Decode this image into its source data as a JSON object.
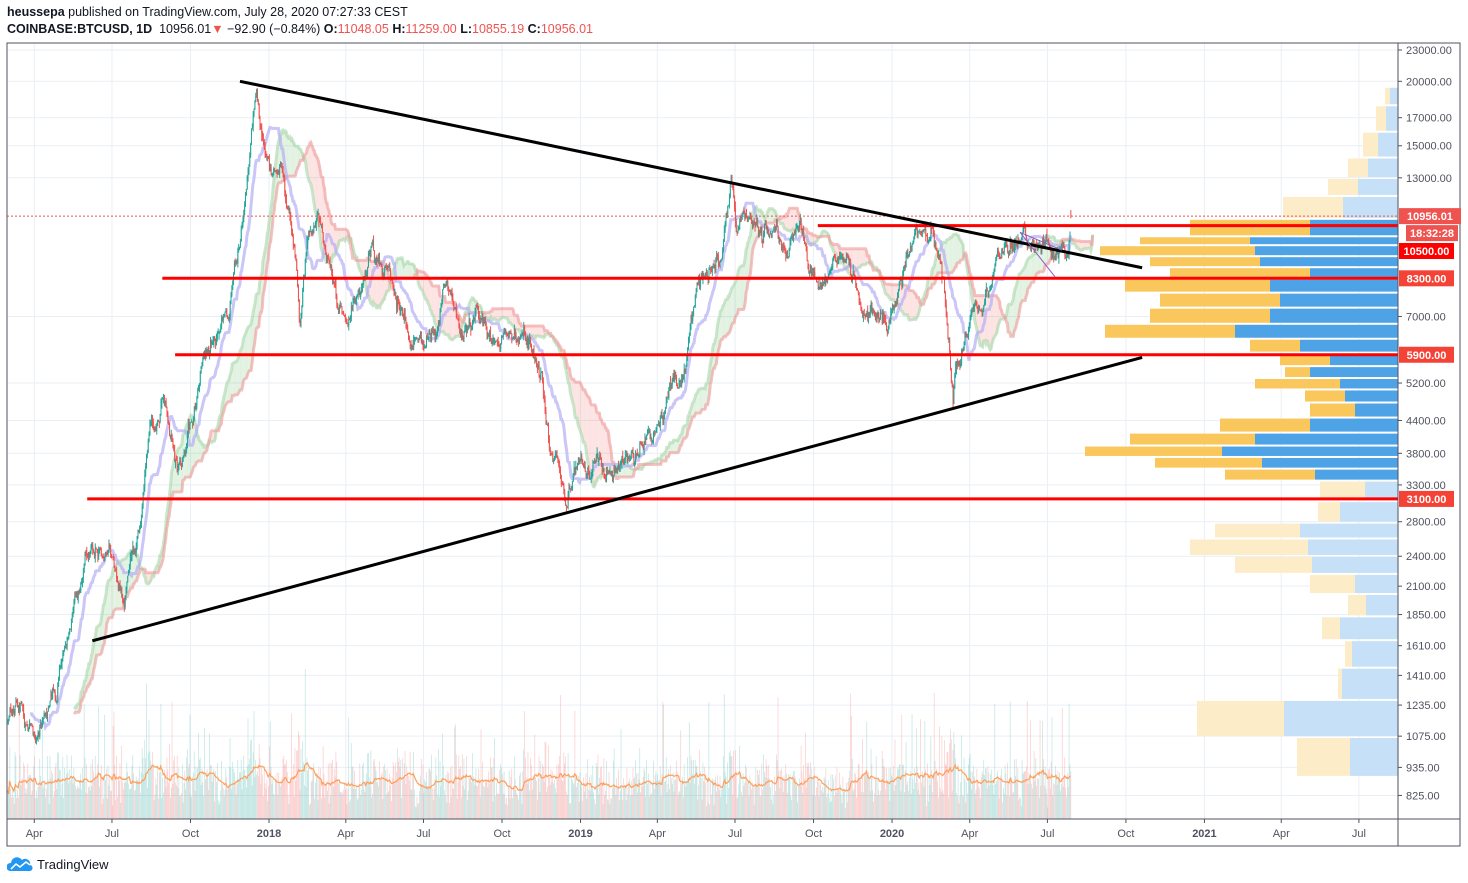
{
  "header": {
    "author": "heussepa",
    "published_text": "published on TradingView.com, July 28, 2020 07:27:33 CEST",
    "symbol": "COINBASE:BTCUSD, 1D",
    "last": "10956.01",
    "change": "−92.90 (−0.84%)",
    "o_label": "O:",
    "o": "11048.05",
    "h_label": "H:",
    "h": "11259.00",
    "l_label": "L:",
    "l": "10855.19",
    "c_label": "C:",
    "c": "10956.01",
    "direction_icon": "down-triangle-icon"
  },
  "footer": {
    "brand": "TradingView",
    "logo_icon": "tradingview-cloud-icon"
  },
  "chart_data": {
    "type": "candlestick",
    "scale": "log",
    "interval": "1D",
    "ylim": [
      790,
      23500
    ],
    "grid": true,
    "colors": {
      "up": "#26a69a",
      "down": "#ef5350",
      "level": "#ff0000",
      "trend": "#000000",
      "kijun": "#b3aef5",
      "span_a": "#a5d6a7",
      "span_b": "#ef9a9a",
      "volume_ma": "#ff9f5a",
      "vp_up": "#f9c75c",
      "vp_down": "#4ea3e6",
      "vp_up_faded": "#fdecc8",
      "vp_down_faded": "#c5e0f7"
    },
    "y_ticks": [
      "23000.00",
      "20000.00",
      "17000.00",
      "15000.00",
      "13000.00",
      "7000.00",
      "5200.00",
      "4400.00",
      "3800.00",
      "3300.00",
      "2800.00",
      "2400.00",
      "2100.00",
      "1850.00",
      "1610.00",
      "1410.00",
      "1235.00",
      "1075.00",
      "935.00",
      "825.00"
    ],
    "x_ticks": [
      {
        "label": "Apr",
        "date": "2017-04-01",
        "bold": false
      },
      {
        "label": "Jul",
        "date": "2017-07-01",
        "bold": false
      },
      {
        "label": "Oct",
        "date": "2017-10-01",
        "bold": false
      },
      {
        "label": "2018",
        "date": "2018-01-01",
        "bold": true
      },
      {
        "label": "Apr",
        "date": "2018-04-01",
        "bold": false
      },
      {
        "label": "Jul",
        "date": "2018-07-01",
        "bold": false
      },
      {
        "label": "Oct",
        "date": "2018-10-01",
        "bold": false
      },
      {
        "label": "2019",
        "date": "2019-01-01",
        "bold": true
      },
      {
        "label": "Apr",
        "date": "2019-04-01",
        "bold": false
      },
      {
        "label": "Jul",
        "date": "2019-07-01",
        "bold": false
      },
      {
        "label": "Oct",
        "date": "2019-10-01",
        "bold": false
      },
      {
        "label": "2020",
        "date": "2020-01-01",
        "bold": true
      },
      {
        "label": "Apr",
        "date": "2020-04-01",
        "bold": false
      },
      {
        "label": "Jul",
        "date": "2020-07-01",
        "bold": false
      },
      {
        "label": "Oct",
        "date": "2020-10-01",
        "bold": false
      },
      {
        "label": "2021",
        "date": "2021-01-01",
        "bold": true
      },
      {
        "label": "Apr",
        "date": "2021-04-01",
        "bold": false
      },
      {
        "label": "Jul",
        "date": "2021-07-01",
        "bold": false
      }
    ],
    "price_path": [
      [
        "2017-03-01",
        1200
      ],
      [
        "2017-03-15",
        1250
      ],
      [
        "2017-04-01",
        1080
      ],
      [
        "2017-04-15",
        1180
      ],
      [
        "2017-05-01",
        1420
      ],
      [
        "2017-05-15",
        1750
      ],
      [
        "2017-06-01",
        2400
      ],
      [
        "2017-06-15",
        2450
      ],
      [
        "2017-07-01",
        2500
      ],
      [
        "2017-07-15",
        1950
      ],
      [
        "2017-08-01",
        2700
      ],
      [
        "2017-08-15",
        4200
      ],
      [
        "2017-09-01",
        4700
      ],
      [
        "2017-09-15",
        3700
      ],
      [
        "2017-10-01",
        4350
      ],
      [
        "2017-10-15",
        5700
      ],
      [
        "2017-11-01",
        6700
      ],
      [
        "2017-11-15",
        7300
      ],
      [
        "2017-12-01",
        10900
      ],
      [
        "2017-12-17",
        19500
      ],
      [
        "2018-01-01",
        13400
      ],
      [
        "2018-01-15",
        13600
      ],
      [
        "2018-02-01",
        9100
      ],
      [
        "2018-02-06",
        6900
      ],
      [
        "2018-02-15",
        10000
      ],
      [
        "2018-03-01",
        10900
      ],
      [
        "2018-03-15",
        8300
      ],
      [
        "2018-04-01",
        6900
      ],
      [
        "2018-04-15",
        8000
      ],
      [
        "2018-05-01",
        9200
      ],
      [
        "2018-05-15",
        8500
      ],
      [
        "2018-06-01",
        7500
      ],
      [
        "2018-06-15",
        6500
      ],
      [
        "2018-07-01",
        6350
      ],
      [
        "2018-07-15",
        6300
      ],
      [
        "2018-07-25",
        8200
      ],
      [
        "2018-08-01",
        7600
      ],
      [
        "2018-08-15",
        6300
      ],
      [
        "2018-09-01",
        7000
      ],
      [
        "2018-09-15",
        6500
      ],
      [
        "2018-10-01",
        6600
      ],
      [
        "2018-10-15",
        6400
      ],
      [
        "2018-11-01",
        6350
      ],
      [
        "2018-11-15",
        5600
      ],
      [
        "2018-11-25",
        3800
      ],
      [
        "2018-12-15",
        3200
      ],
      [
        "2019-01-01",
        3800
      ],
      [
        "2019-01-15",
        3600
      ],
      [
        "2019-02-01",
        3450
      ],
      [
        "2019-02-15",
        3600
      ],
      [
        "2019-03-01",
        3800
      ],
      [
        "2019-03-15",
        4000
      ],
      [
        "2019-04-01",
        4100
      ],
      [
        "2019-04-15",
        5100
      ],
      [
        "2019-05-01",
        5300
      ],
      [
        "2019-05-15",
        8000
      ],
      [
        "2019-06-01",
        8600
      ],
      [
        "2019-06-15",
        8800
      ],
      [
        "2019-06-26",
        12900
      ],
      [
        "2019-07-01",
        10600
      ],
      [
        "2019-07-15",
        10800
      ],
      [
        "2019-08-01",
        10100
      ],
      [
        "2019-08-15",
        10300
      ],
      [
        "2019-09-01",
        9700
      ],
      [
        "2019-09-15",
        10300
      ],
      [
        "2019-09-25",
        8400
      ],
      [
        "2019-10-15",
        8300
      ],
      [
        "2019-10-26",
        9300
      ],
      [
        "2019-11-15",
        8500
      ],
      [
        "2019-11-25",
        7100
      ],
      [
        "2019-12-15",
        7100
      ],
      [
        "2020-01-01",
        7200
      ],
      [
        "2020-01-15",
        8800
      ],
      [
        "2020-02-01",
        9400
      ],
      [
        "2020-02-15",
        10300
      ],
      [
        "2020-03-01",
        8600
      ],
      [
        "2020-03-12",
        4900
      ],
      [
        "2020-03-15",
        5400
      ],
      [
        "2020-04-01",
        6600
      ],
      [
        "2020-04-15",
        6900
      ],
      [
        "2020-04-30",
        8800
      ],
      [
        "2020-05-15",
        9300
      ],
      [
        "2020-06-01",
        9500
      ],
      [
        "2020-06-15",
        9400
      ],
      [
        "2020-07-01",
        9200
      ],
      [
        "2020-07-15",
        9200
      ],
      [
        "2020-07-25",
        9700
      ],
      [
        "2020-07-28",
        10956.01
      ]
    ],
    "last_candle": {
      "date": "2020-07-28",
      "open": 11048.05,
      "high": 11259.0,
      "low": 10855.19,
      "close": 10956.01
    },
    "horizontal_levels": [
      {
        "price": 10500,
        "label": "10500.00",
        "start": "2019-10-06",
        "badge_color": "#ff0000"
      },
      {
        "price": 8300,
        "label": "8300.00",
        "start": "2017-08-29",
        "badge_color": "#f44336"
      },
      {
        "price": 5900,
        "label": "5900.00",
        "start": "2017-09-13",
        "badge_color": "#f44336"
      },
      {
        "price": 3100,
        "label": "3100.00",
        "start": "2017-06-02",
        "badge_color": "#f44336"
      }
    ],
    "current_price": {
      "label": "10956.01",
      "price": 10956.01,
      "countdown": "18:32:28",
      "color": "#ef5350"
    },
    "trend_lines": [
      {
        "name": "upper",
        "from": [
          "2017-11-28",
          20000
        ],
        "to": [
          "2020-10-20",
          8700
        ],
        "color": "#000000"
      },
      {
        "name": "lower",
        "from": [
          "2017-06-08",
          1645
        ],
        "to": [
          "2020-10-20",
          5830
        ],
        "color": "#000000"
      },
      {
        "name": "pennant-a",
        "from": [
          "2020-05-30",
          10190
        ],
        "to": [
          "2020-07-10",
          8350
        ],
        "color": "#8e5cc4"
      },
      {
        "name": "pennant-b",
        "from": [
          "2020-05-30",
          10190
        ],
        "to": [
          "2020-07-18",
          9410
        ],
        "color": "#8e5cc4"
      }
    ],
    "volume_profile": [
      {
        "price": 19000,
        "up": 5,
        "down": 8,
        "active": false
      },
      {
        "price": 17000,
        "up": 10,
        "down": 12,
        "active": false
      },
      {
        "price": 15000,
        "up": 15,
        "down": 20,
        "active": false
      },
      {
        "price": 13500,
        "up": 20,
        "down": 30,
        "active": false
      },
      {
        "price": 12500,
        "up": 30,
        "down": 40,
        "active": false
      },
      {
        "price": 11500,
        "up": 60,
        "down": 55,
        "active": false
      },
      {
        "price": 10190,
        "up": 120,
        "down": 88,
        "active": true
      },
      {
        "price": 9840,
        "up": 110,
        "down": 148,
        "active": true
      },
      {
        "price": 9410,
        "up": 155,
        "down": 143,
        "active": true
      },
      {
        "price": 8920,
        "up": 110,
        "down": 138,
        "active": true
      },
      {
        "price": 8530,
        "up": 140,
        "down": 88,
        "active": true
      },
      {
        "price": 8050,
        "up": 145,
        "down": 128,
        "active": true
      },
      {
        "price": 7530,
        "up": 120,
        "down": 118,
        "active": true
      },
      {
        "price": 7040,
        "up": 120,
        "down": 128,
        "active": true
      },
      {
        "price": 6520,
        "up": 130,
        "down": 163,
        "active": true
      },
      {
        "price": 6160,
        "up": 50,
        "down": 98,
        "active": true
      },
      {
        "price": 5760,
        "up": 50,
        "down": 68,
        "active": true
      },
      {
        "price": 5460,
        "up": 25,
        "down": 88,
        "active": true
      },
      {
        "price": 5180,
        "up": 85,
        "down": 58,
        "active": true
      },
      {
        "price": 4930,
        "up": 40,
        "down": 53,
        "active": true
      },
      {
        "price": 4610,
        "up": 45,
        "down": 43,
        "active": true
      },
      {
        "price": 4310,
        "up": 90,
        "down": 88,
        "active": true
      },
      {
        "price": 4030,
        "up": 125,
        "down": 143,
        "active": true
      },
      {
        "price": 3840,
        "up": 137,
        "down": 176,
        "active": true
      },
      {
        "price": 3640,
        "up": 107,
        "down": 136,
        "active": true
      },
      {
        "price": 3460,
        "up": 90,
        "down": 83,
        "active": true
      },
      {
        "price": 3270,
        "up": 45,
        "down": 33,
        "active": false
      },
      {
        "price": 2880,
        "up": 22,
        "down": 58,
        "active": false
      },
      {
        "price": 2700,
        "up": 85,
        "down": 98,
        "active": false
      },
      {
        "price": 2500,
        "up": 118,
        "down": 90,
        "active": false
      },
      {
        "price": 2310,
        "up": 77,
        "down": 86,
        "active": false
      },
      {
        "price": 2130,
        "up": 45,
        "down": 43,
        "active": false
      },
      {
        "price": 1930,
        "up": 18,
        "down": 32,
        "active": false
      },
      {
        "price": 1745,
        "up": 18,
        "down": 58,
        "active": false
      },
      {
        "price": 1560,
        "up": 7,
        "down": 46,
        "active": false
      },
      {
        "price": 1365,
        "up": 4,
        "down": 56,
        "active": false
      },
      {
        "price": 1170,
        "up": 87,
        "down": 114,
        "active": false
      },
      {
        "price": 980,
        "up": 53,
        "down": 48,
        "active": false
      }
    ]
  }
}
